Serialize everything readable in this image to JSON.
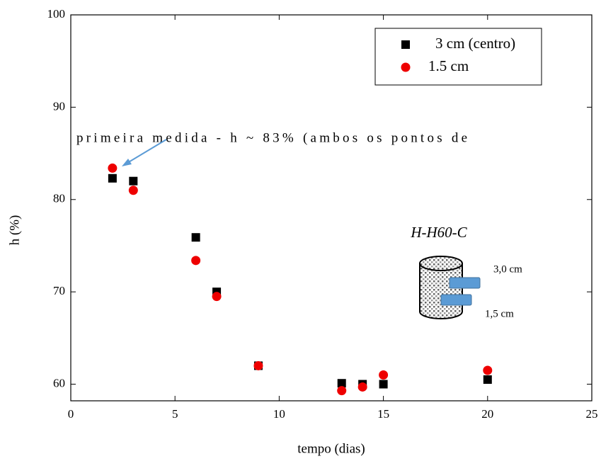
{
  "chart_data": {
    "type": "scatter",
    "x_label": "tempo (dias)",
    "y_label": "h (%)",
    "xlim": [
      0,
      25
    ],
    "xticks": [
      0,
      5,
      10,
      15,
      20,
      25
    ],
    "ylim": [
      58.2,
      100
    ],
    "yticks": [
      60,
      70,
      80,
      90,
      100
    ],
    "legend": "upper right",
    "series": [
      {
        "name": "3 cm (centro)",
        "color": "#000000",
        "marker": "square",
        "x": [
          2,
          3,
          6,
          7,
          9,
          13,
          14,
          15,
          20
        ],
        "values": [
          82.3,
          82,
          75.9,
          70,
          62,
          60.1,
          60,
          60,
          60.5
        ]
      },
      {
        "name": "1.5 cm",
        "color": "#ee0000",
        "marker": "circle",
        "x": [
          2,
          3,
          6,
          7,
          9,
          13,
          14,
          15,
          20
        ],
        "values": [
          83.4,
          81,
          73.4,
          69.5,
          62,
          59.3,
          59.7,
          61,
          61.5
        ]
      }
    ],
    "annotation": "primeira medida - h ~ 83% (ambos os pontos de",
    "inset_title": "H-H60-C",
    "inset_labels": [
      "3,0 cm",
      "1,5 cm"
    ]
  }
}
